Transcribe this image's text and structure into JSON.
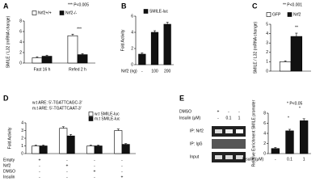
{
  "chart_data": [
    {
      "type": "bar",
      "panel_label": "A",
      "annotation": "*** P<0.005",
      "y_label": "SMILE / L32 (mRNA change)",
      "categories": [
        "Fast 16 h",
        "Refed 2 h"
      ],
      "series": [
        {
          "name": "Nrf2+/+",
          "color": "#ffffff",
          "values": [
            1.0,
            5.2
          ],
          "errors": [
            0.2,
            0.3
          ]
        },
        {
          "name": "Nrf2-/-",
          "color": "#111111",
          "values": [
            1.3,
            1.6
          ],
          "errors": [
            0.2,
            0.2
          ]
        }
      ],
      "significance": [
        "***"
      ],
      "ylim": [
        0,
        8
      ],
      "yticks": [
        0,
        2,
        4,
        6,
        8
      ]
    },
    {
      "type": "bar",
      "panel_label": "B",
      "y_label": "Fold Activity",
      "x_label": "Nrf2 (ng)",
      "categories": [
        "-",
        "100",
        "200"
      ],
      "series": [
        {
          "name": "SMILE-luc",
          "color": "#111111",
          "values": [
            1.3,
            4.0,
            5.0
          ],
          "errors": [
            0.15,
            0.2,
            0.25
          ]
        }
      ],
      "ylim": [
        0,
        6
      ],
      "yticks": [
        0,
        2,
        4,
        6
      ]
    },
    {
      "type": "bar",
      "panel_label": "C",
      "annotation": "** P<0.001",
      "y_label": "SMILE / L32 (mRNA change)",
      "categories": [
        null
      ],
      "series": [
        {
          "name": "GFP",
          "color": "#ffffff",
          "values": [
            1.0
          ],
          "errors": [
            0.1
          ]
        },
        {
          "name": "Nrf2",
          "color": "#111111",
          "values": [
            3.7
          ],
          "errors": [
            0.35
          ]
        }
      ],
      "significance": [
        "**"
      ],
      "ylim": [
        0,
        5
      ],
      "yticks": [
        0,
        1,
        2,
        3,
        4,
        5
      ]
    },
    {
      "type": "bar",
      "panel_label": "D",
      "notes": [
        "w.t ARE: 5'-TGATTCAGC-3'",
        "m.t ARE: 5'-TGATTCAAT-3'"
      ],
      "y_label": "Fold Activity",
      "categories": [
        null,
        null,
        null,
        null
      ],
      "series": [
        {
          "name": "w.t SMILE-luc",
          "color": "#ffffff",
          "values": [
            1.0,
            3.3,
            1.0,
            3.0
          ],
          "errors": [
            0.1,
            0.2,
            0.1,
            0.2
          ]
        },
        {
          "name": "m.t SMILE-luc",
          "color": "#111111",
          "values": [
            1.0,
            2.3,
            1.0,
            1.2
          ],
          "errors": [
            0.1,
            0.2,
            0.1,
            0.1
          ]
        }
      ],
      "conditions": [
        {
          "label": "Empty",
          "signs": [
            "+",
            "-",
            "-",
            "-"
          ]
        },
        {
          "label": "Nrf2",
          "signs": [
            "-",
            "+",
            "-",
            "-"
          ]
        },
        {
          "label": "DMSO",
          "signs": [
            "-",
            "-",
            "+",
            "-"
          ]
        },
        {
          "label": "Insulin",
          "signs": [
            "-",
            "-",
            "-",
            "+"
          ]
        }
      ],
      "ylim": [
        0,
        4
      ],
      "yticks": [
        0,
        1,
        2,
        3,
        4
      ]
    },
    {
      "type": "bar",
      "panel_label": "E",
      "annotation": "* P<0.05",
      "y_label": "Relative Enrichment SMILE promoter",
      "x_label": "Insulin (μM)",
      "categories": [
        "-",
        "0.1",
        "1"
      ],
      "series": [
        {
          "name": null,
          "color": "#111111",
          "values": [
            1.0,
            4.5,
            6.5
          ],
          "errors": [
            0.2,
            0.3,
            0.4
          ]
        }
      ],
      "significance": [
        "*",
        "*"
      ],
      "blot": {
        "conditions": [
          {
            "label": "DMSO",
            "signs": [
              "+",
              "-",
              "-"
            ]
          },
          {
            "label": "Insulin (μM)",
            "signs": [
              "-",
              "0.1",
              "1"
            ]
          }
        ],
        "rows": [
          "IP: Nrf2",
          "IP: IgG",
          "Input"
        ]
      },
      "ylim": [
        0,
        8
      ],
      "yticks": [
        0,
        2,
        4,
        6,
        8
      ]
    }
  ]
}
